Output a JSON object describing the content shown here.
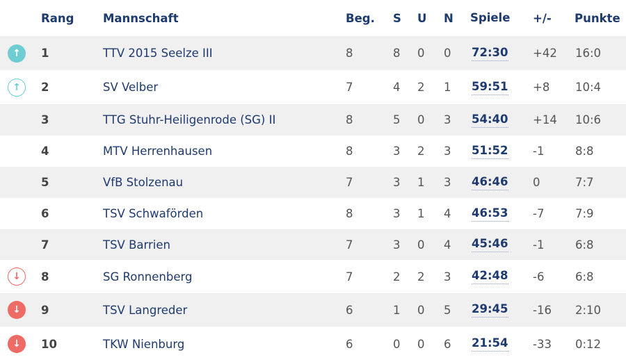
{
  "header": {
    "rang": "Rang",
    "team": "Mannschaft",
    "beg": "Beg.",
    "s": "S",
    "u": "U",
    "n": "N",
    "spiele": "Spiele",
    "diff": "+/-",
    "punkte": "Punkte"
  },
  "colors": {
    "promotion": "#6dcdd3",
    "relegation": "#ef6b66",
    "header_text": "#1d3b6e",
    "stripe": "#f0f0f0"
  },
  "rows": [
    {
      "icon": "arrow-up-filled",
      "rang": "1",
      "team": "TTV 2015 Seelze III",
      "beg": "8",
      "s": "8",
      "u": "0",
      "n": "0",
      "spiele": "72:30",
      "diff": "+42",
      "punkte": "16:0"
    },
    {
      "icon": "arrow-up-outline",
      "rang": "2",
      "team": "SV Velber",
      "beg": "7",
      "s": "4",
      "u": "2",
      "n": "1",
      "spiele": "59:51",
      "diff": "+8",
      "punkte": "10:4"
    },
    {
      "icon": "",
      "rang": "3",
      "team": "TTG Stuhr-Heiligenrode (SG) II",
      "beg": "8",
      "s": "5",
      "u": "0",
      "n": "3",
      "spiele": "54:40",
      "diff": "+14",
      "punkte": "10:6"
    },
    {
      "icon": "",
      "rang": "4",
      "team": "MTV Herrenhausen",
      "beg": "8",
      "s": "3",
      "u": "2",
      "n": "3",
      "spiele": "51:52",
      "diff": "-1",
      "punkte": "8:8"
    },
    {
      "icon": "",
      "rang": "5",
      "team": "VfB Stolzenau",
      "beg": "7",
      "s": "3",
      "u": "1",
      "n": "3",
      "spiele": "46:46",
      "diff": "0",
      "punkte": "7:7"
    },
    {
      "icon": "",
      "rang": "6",
      "team": "TSV Schwaförden",
      "beg": "8",
      "s": "3",
      "u": "1",
      "n": "4",
      "spiele": "46:53",
      "diff": "-7",
      "punkte": "7:9"
    },
    {
      "icon": "",
      "rang": "7",
      "team": "TSV Barrien",
      "beg": "7",
      "s": "3",
      "u": "0",
      "n": "4",
      "spiele": "45:46",
      "diff": "-1",
      "punkte": "6:8"
    },
    {
      "icon": "arrow-down-outline",
      "rang": "8",
      "team": "SG Ronnenberg",
      "beg": "7",
      "s": "2",
      "u": "2",
      "n": "3",
      "spiele": "42:48",
      "diff": "-6",
      "punkte": "6:8"
    },
    {
      "icon": "arrow-down-filled",
      "rang": "9",
      "team": "TSV Langreder",
      "beg": "6",
      "s": "1",
      "u": "0",
      "n": "5",
      "spiele": "29:45",
      "diff": "-16",
      "punkte": "2:10"
    },
    {
      "icon": "arrow-down-filled",
      "rang": "10",
      "team": "TKW Nienburg",
      "beg": "6",
      "s": "0",
      "u": "0",
      "n": "6",
      "spiele": "21:54",
      "diff": "-33",
      "punkte": "0:12"
    }
  ]
}
